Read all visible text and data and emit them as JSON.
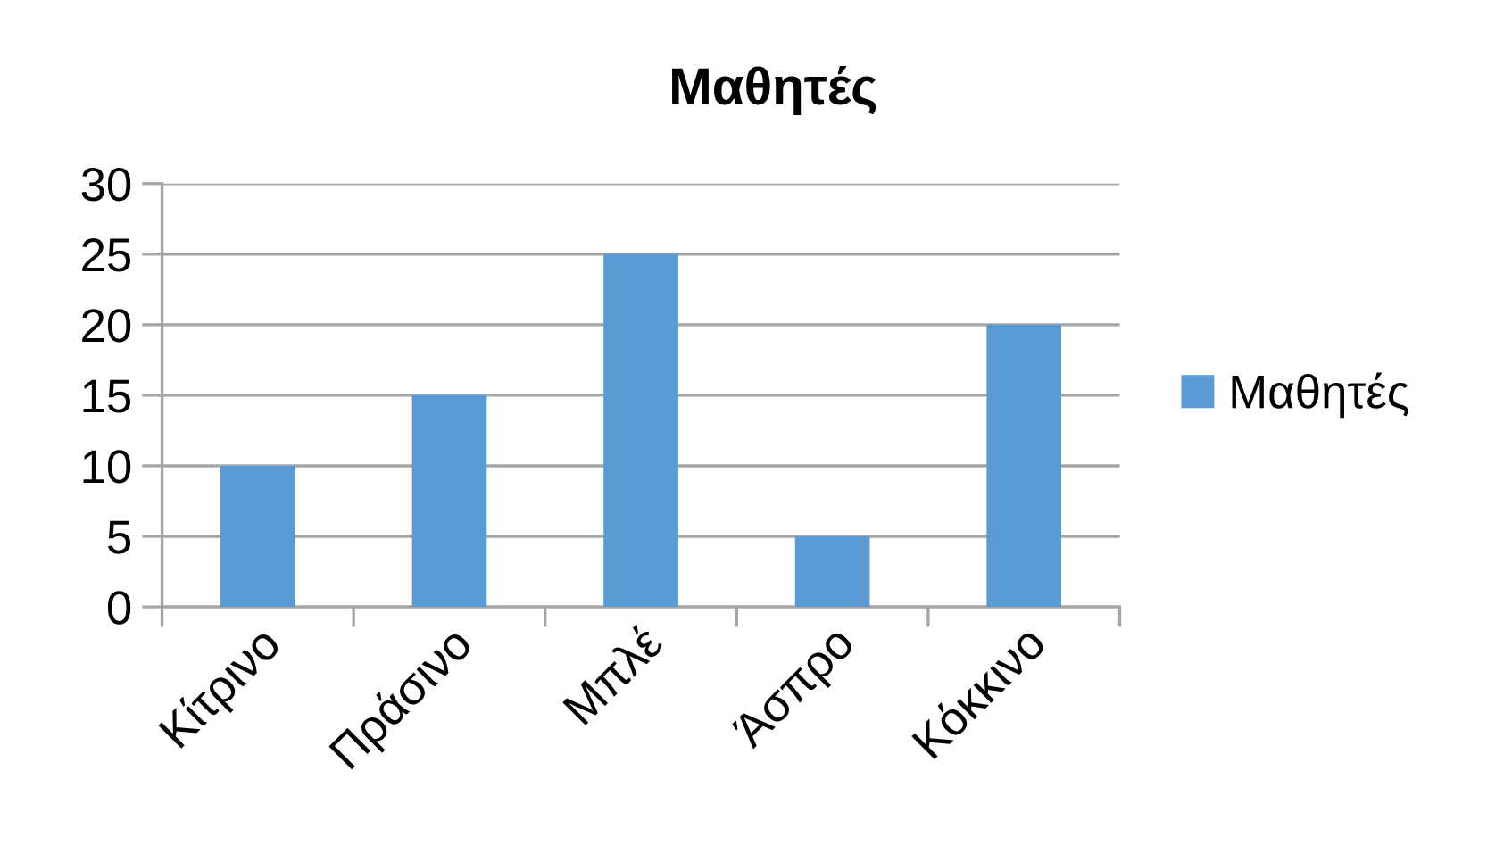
{
  "chart_data": {
    "type": "bar",
    "title": "Μαθητές",
    "categories": [
      "Κίτρινο",
      "Πράσινο",
      "Μπλέ",
      "Άσπρο",
      "Κόκκινο"
    ],
    "series": [
      {
        "name": "Μαθητές",
        "color": "#5b9bd5",
        "values": [
          10,
          15,
          25,
          5,
          20
        ]
      }
    ],
    "ylim": [
      0,
      30
    ],
    "yticks": [
      0,
      5,
      10,
      15,
      20,
      25,
      30
    ],
    "grid": "y",
    "legend": "right"
  }
}
